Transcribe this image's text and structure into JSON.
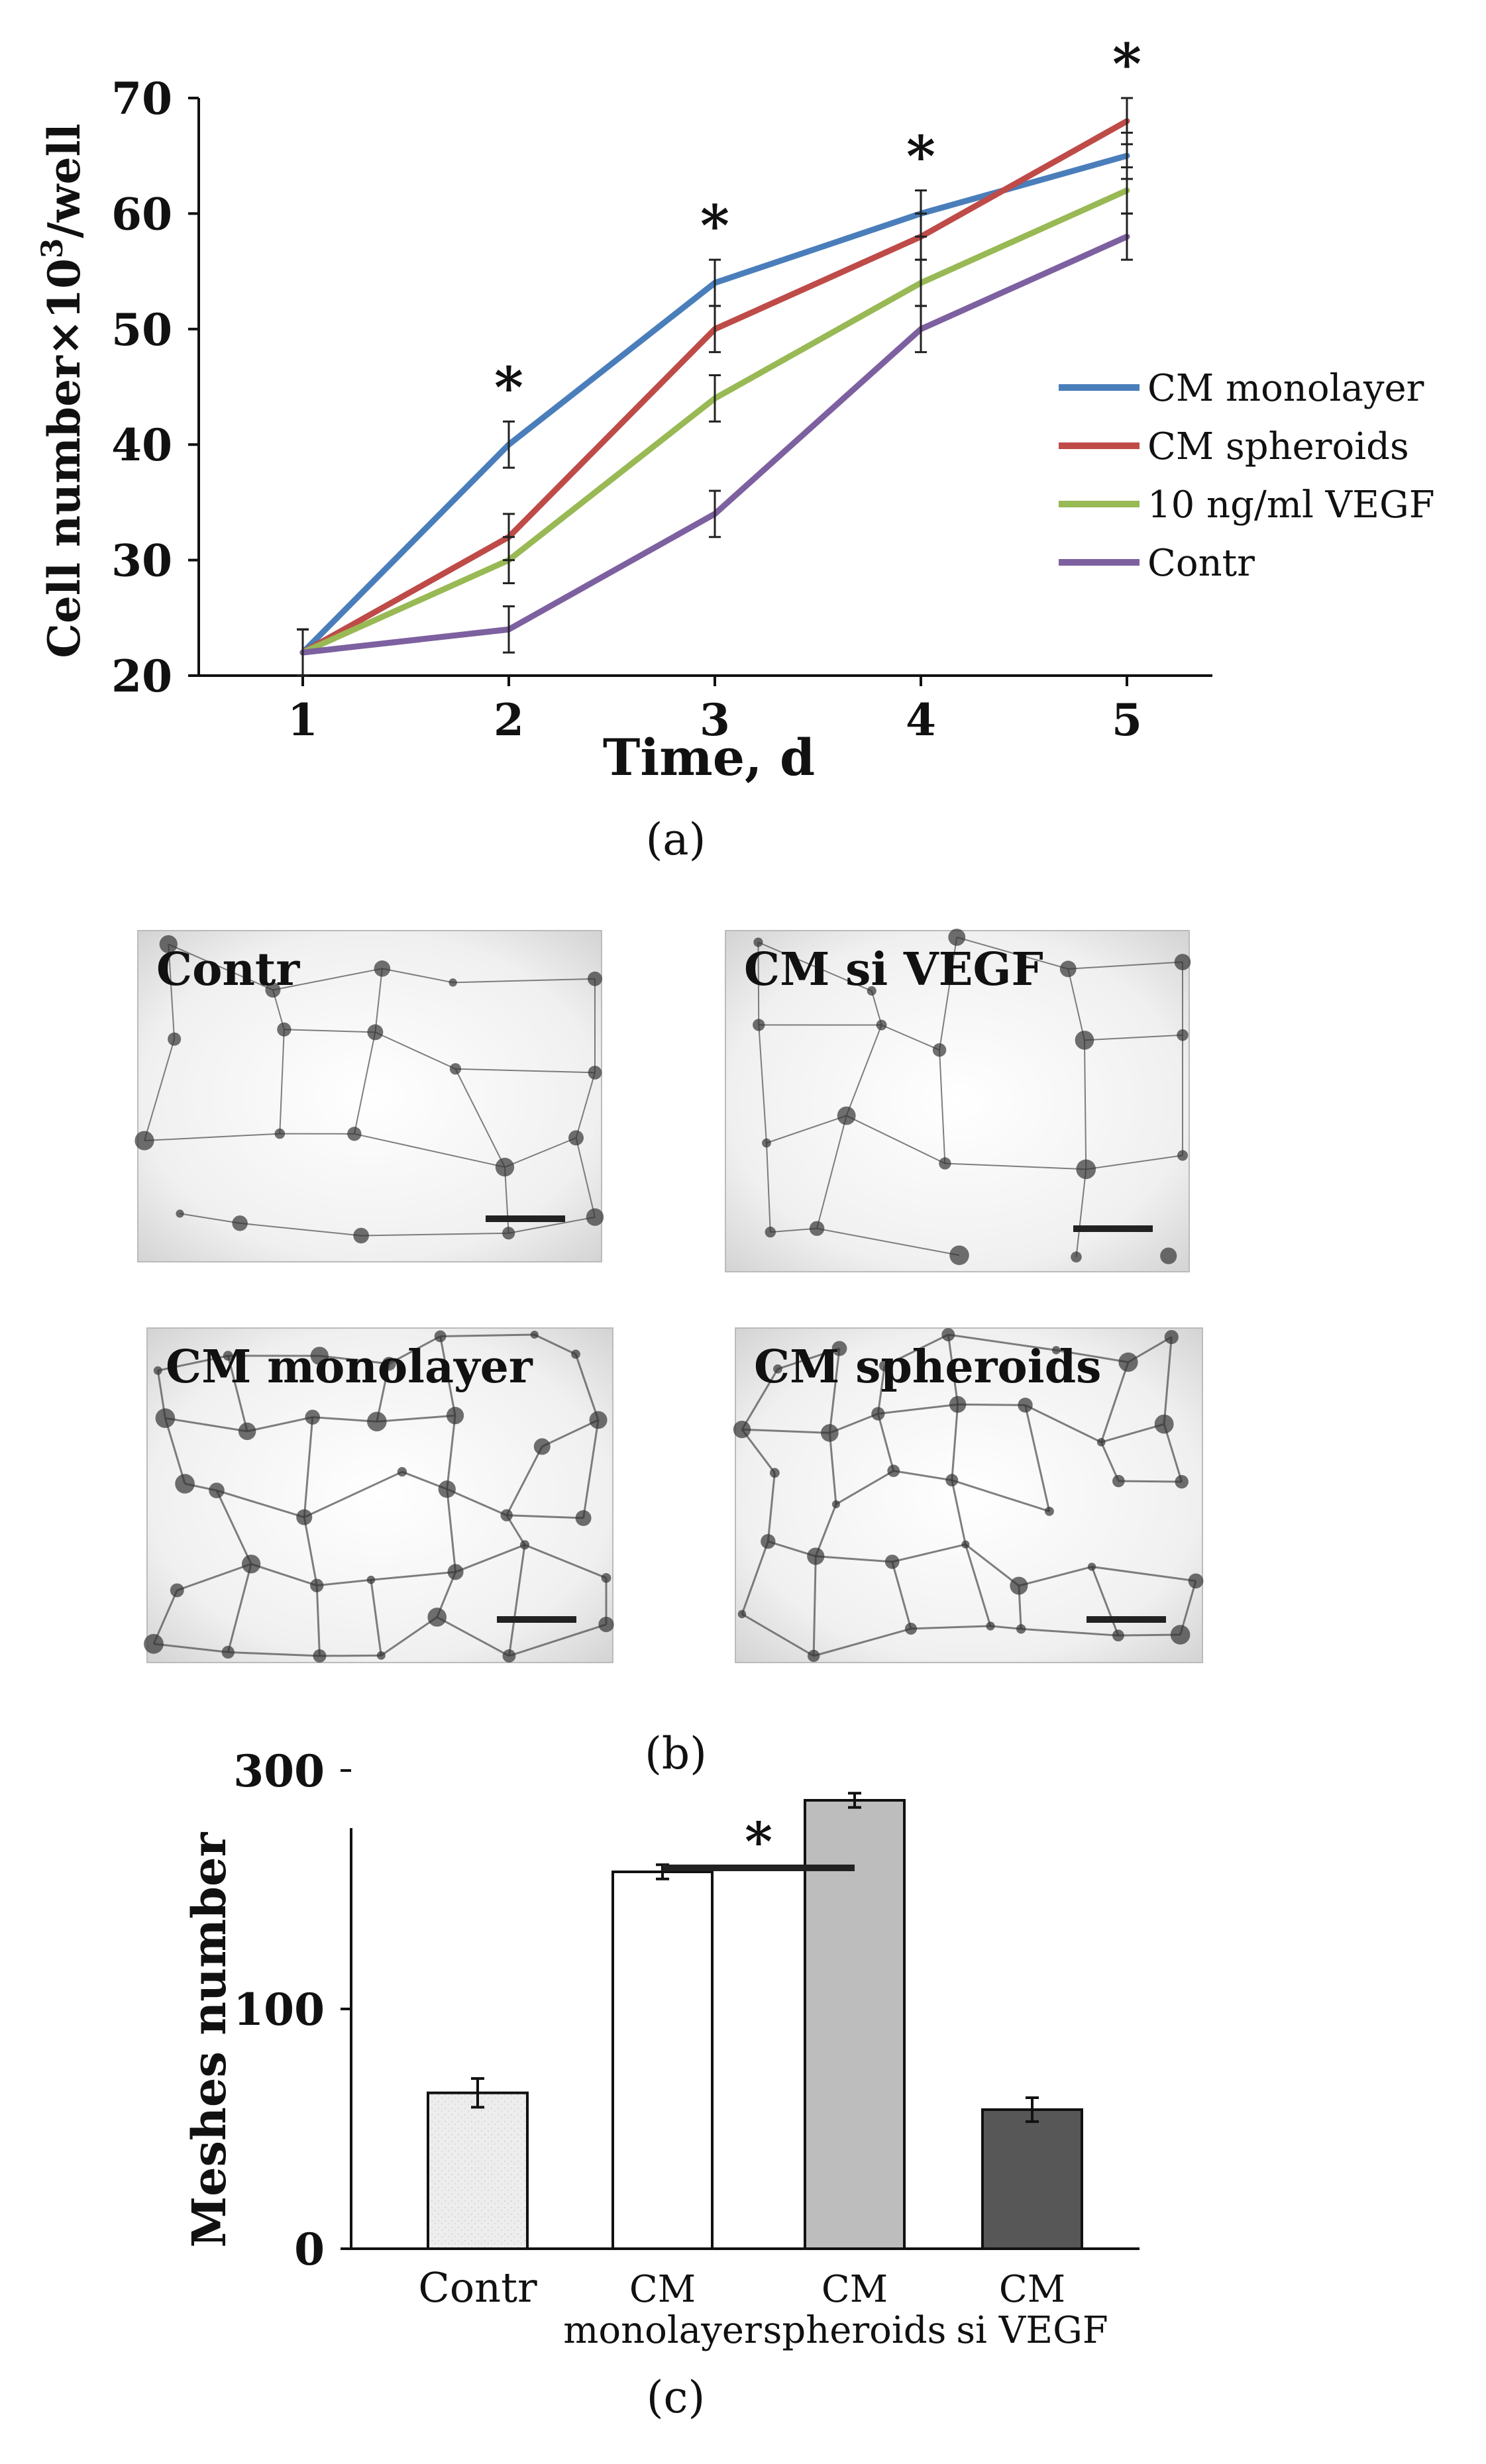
{
  "panel_a": {
    "caption": "(a)",
    "chart_data": {
      "type": "line",
      "xlabel": "Time, d",
      "ylabel_main": "Cell number×10",
      "ylabel_sup": "3",
      "ylabel_tail": "/well",
      "x": [
        1,
        2,
        3,
        4,
        5
      ],
      "x_ticks": [
        "1",
        "2",
        "3",
        "4",
        "5"
      ],
      "y_ticks": [
        "20",
        "30",
        "40",
        "50",
        "60",
        "70"
      ],
      "ylim": [
        20,
        70
      ],
      "series": [
        {
          "name": "CM monolayer",
          "color": "#4a7ebb",
          "values": [
            22,
            40,
            54,
            60,
            65
          ],
          "errors": [
            2,
            2,
            2,
            2,
            2
          ]
        },
        {
          "name": "CM spheroids",
          "color": "#be4b48",
          "values": [
            22,
            32,
            50,
            58,
            68
          ],
          "errors": [
            2,
            2,
            2,
            2,
            2
          ]
        },
        {
          "name": "10 ng/ml VEGF",
          "color": "#98b954",
          "values": [
            22,
            30,
            44,
            54,
            62
          ],
          "errors": [
            2,
            2,
            2,
            2,
            2
          ]
        },
        {
          "name": "Contr",
          "color": "#7d60a0",
          "values": [
            22,
            24,
            34,
            50,
            58
          ],
          "errors": [
            2,
            2,
            2,
            2,
            2
          ]
        }
      ],
      "significance": [
        "",
        "*",
        "*",
        "*",
        "*"
      ]
    }
  },
  "panel_b": {
    "caption": "(b)",
    "images": [
      {
        "label": "Contr"
      },
      {
        "label": "CM si VEGF"
      },
      {
        "label": "CM monolayer"
      },
      {
        "label": "CM spheroids"
      }
    ]
  },
  "panel_c": {
    "caption": "(c)",
    "chart_data": {
      "type": "bar",
      "ylabel": "Meshes number",
      "y_ticks": [
        "0",
        "100",
        "300"
      ],
      "categories": [
        "Contr",
        "CM monolayer",
        "CM spheroids",
        "CM si VEGF"
      ],
      "category_lines": [
        [
          "Contr"
        ],
        [
          "CM",
          "monolayer"
        ],
        [
          "CM",
          "spheroids"
        ],
        [
          "CM",
          "si VEGF"
        ]
      ],
      "values": [
        65,
        215,
        275,
        58
      ],
      "errors": [
        6,
        6,
        6,
        5
      ],
      "colors": [
        "#ececec",
        "#ffffff",
        "#bdbdbd",
        "#575757"
      ],
      "significance_label": "*"
    }
  }
}
